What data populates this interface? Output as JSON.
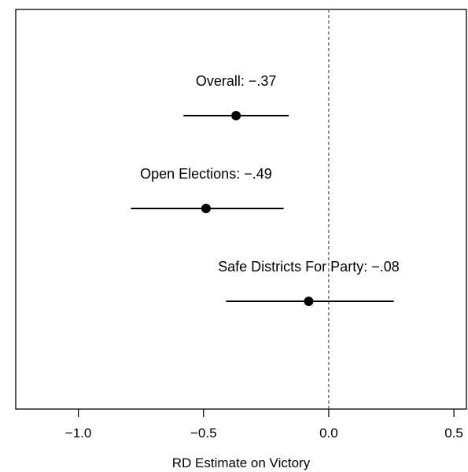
{
  "chart_data": {
    "type": "scatter",
    "title": "",
    "xlabel": "RD Estimate on Victory",
    "ylabel": "",
    "xlim": [
      -1.25,
      0.55
    ],
    "xticks": [
      -1.0,
      -0.5,
      0.0,
      0.5
    ],
    "xtick_labels": [
      "−1.0",
      "−0.5",
      "0.0",
      "0.5"
    ],
    "reference_line": {
      "x": 0,
      "style": "dashed"
    },
    "grid": false,
    "points": [
      {
        "label": "Overall: −.37",
        "estimate": -0.37,
        "ci_low": -0.58,
        "ci_high": -0.16
      },
      {
        "label": "Open Elections: −.49",
        "estimate": -0.49,
        "ci_low": -0.79,
        "ci_high": -0.18
      },
      {
        "label": "Safe Districts For Party: −.08",
        "estimate": -0.08,
        "ci_low": -0.41,
        "ci_high": 0.26
      }
    ]
  }
}
